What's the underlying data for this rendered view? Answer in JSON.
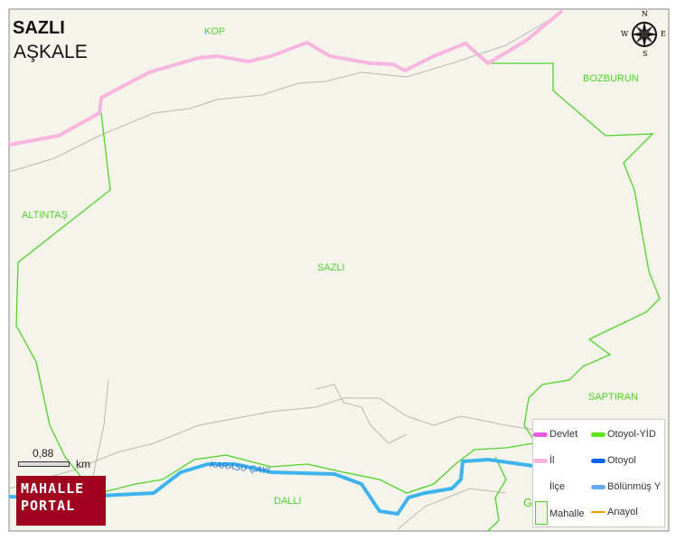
{
  "title": "SAZLI",
  "subtitle": "AŞKALE",
  "places": {
    "kop": "KOP",
    "bozburun": "BOZBURUN",
    "altintas": "ALTINTAŞ",
    "sazli": "SAZLI",
    "saptiran": "SAPTIRAN",
    "dalli": "DALLI",
    "g": "G"
  },
  "river": "KARASU ÇAYI",
  "scale": {
    "value": "0,88",
    "unit": "km"
  },
  "logo": {
    "line1": "MAHALLE",
    "line2": "PORTAL"
  },
  "compass": {
    "n": "N",
    "s": "S",
    "e": "E",
    "w": "W"
  },
  "legend": [
    {
      "label": "Devlet",
      "color": "#e85ce0"
    },
    {
      "label": "Otoyol-YİD",
      "color": "#5ce61e"
    },
    {
      "label": "İl",
      "color": "#f7b6e0"
    },
    {
      "label": "Otoyol",
      "color": "#0a64f0"
    },
    {
      "label": "İlçe",
      "color": ""
    },
    {
      "label": "Bölünmüş Y",
      "color": "#6aaaf0"
    },
    {
      "label": "Mahalle",
      "color": "#4fd12a"
    },
    {
      "label": "Anayol",
      "color": "#f5a000"
    }
  ],
  "colors": {
    "background": "#f5f4ea",
    "boundary": "#4fd12a",
    "province": "#f7b6e0",
    "river": "#3fb3ee",
    "road": "#b8b8b0"
  }
}
